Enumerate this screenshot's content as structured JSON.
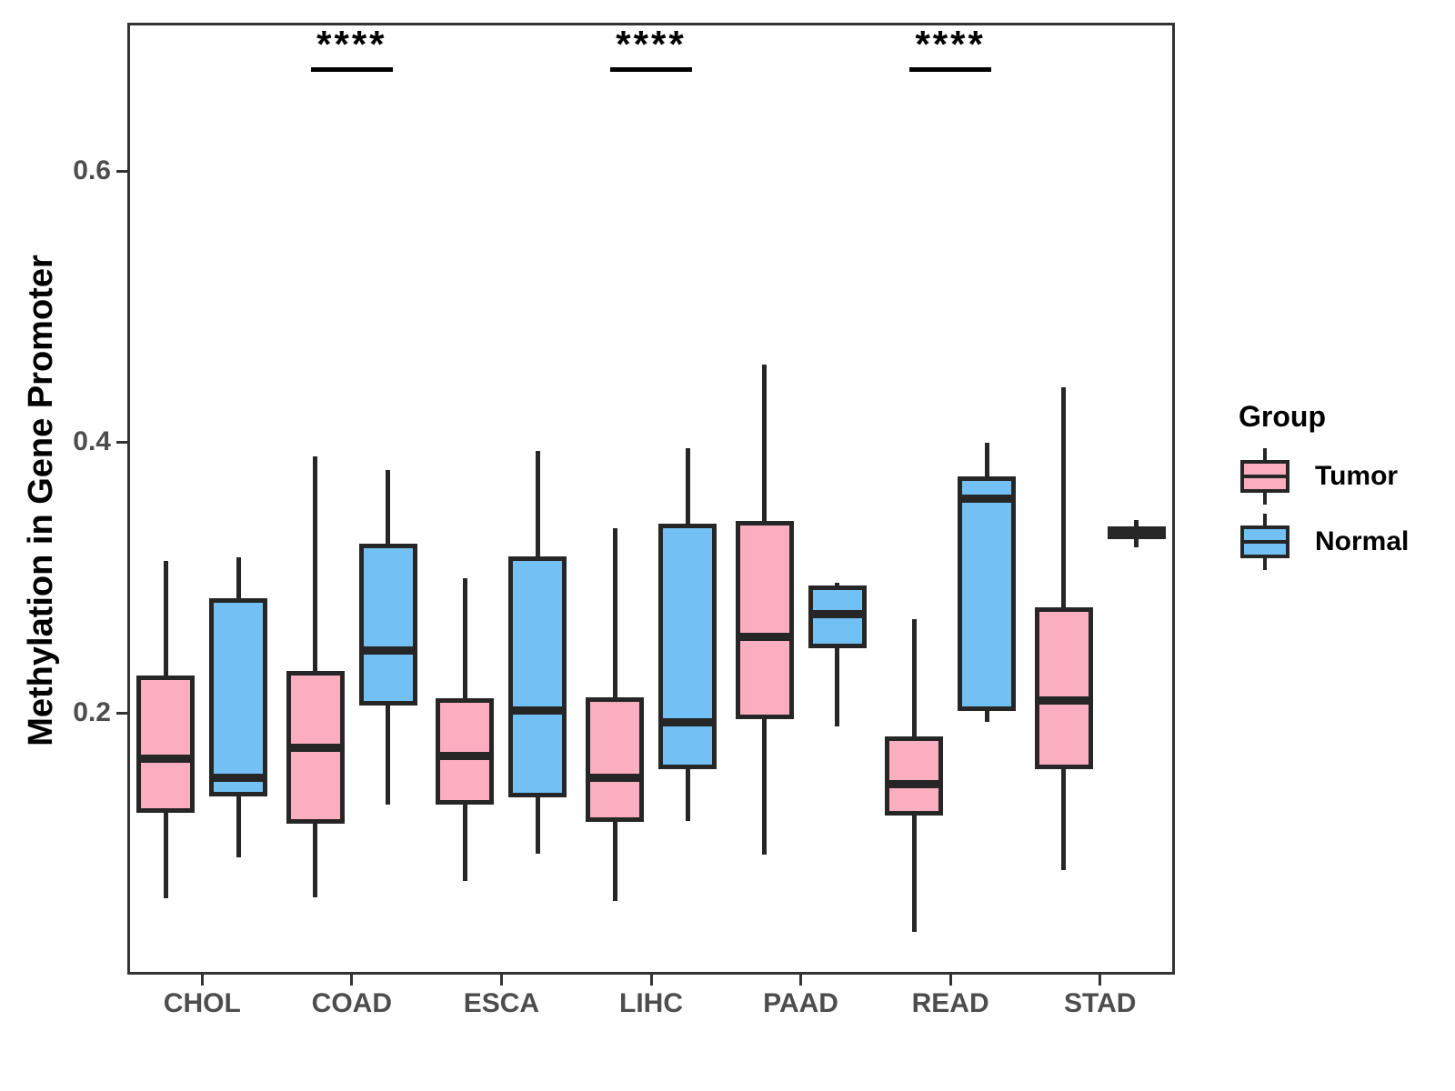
{
  "y_axis": {
    "title": "Methylation in Gene Promoter",
    "tick_labels": [
      "0.2",
      "0.4",
      "0.6"
    ]
  },
  "x_axis": {
    "categories": [
      "CHOL",
      "COAD",
      "ESCA",
      "LIHC",
      "PAAD",
      "READ",
      "STAD"
    ]
  },
  "legend": {
    "title": "Group",
    "entries": [
      {
        "label": "Tumor",
        "color": "#FBAEC0"
      },
      {
        "label": "Normal",
        "color": "#72C0F4"
      }
    ]
  },
  "colors": {
    "tumor_fill": "#FBAEC0",
    "normal_fill": "#72C0F4",
    "stroke": "#262626",
    "panel_border": "#333333",
    "axis_text": "#4d4d4d"
  },
  "chart_data": {
    "type": "boxplot",
    "ylabel": "Methylation in Gene Promoter",
    "ylim": [
      0.005,
      0.71
    ],
    "yticks": [
      0.2,
      0.4,
      0.6
    ],
    "grid": false,
    "legend_position": "right",
    "categories": [
      "CHOL",
      "COAD",
      "ESCA",
      "LIHC",
      "PAAD",
      "READ",
      "STAD"
    ],
    "series": [
      {
        "name": "Tumor",
        "color": "#FBAEC0",
        "boxes": [
          {
            "lo": 0.063,
            "q1": 0.128,
            "med": 0.166,
            "q3": 0.226,
            "hi": 0.312
          },
          {
            "lo": 0.064,
            "q1": 0.12,
            "med": 0.174,
            "q3": 0.229,
            "hi": 0.389
          },
          {
            "lo": 0.076,
            "q1": 0.134,
            "med": 0.168,
            "q3": 0.209,
            "hi": 0.299
          },
          {
            "lo": 0.061,
            "q1": 0.121,
            "med": 0.152,
            "q3": 0.21,
            "hi": 0.336
          },
          {
            "lo": 0.095,
            "q1": 0.197,
            "med": 0.256,
            "q3": 0.34,
            "hi": 0.457
          },
          {
            "lo": 0.038,
            "q1": 0.126,
            "med": 0.147,
            "q3": 0.181,
            "hi": 0.269
          },
          {
            "lo": 0.084,
            "q1": 0.16,
            "med": 0.209,
            "q3": 0.276,
            "hi": 0.44
          }
        ]
      },
      {
        "name": "Normal",
        "color": "#72C0F4",
        "boxes": [
          {
            "lo": 0.093,
            "q1": 0.14,
            "med": 0.152,
            "q3": 0.283,
            "hi": 0.315
          },
          {
            "lo": 0.132,
            "q1": 0.207,
            "med": 0.246,
            "q3": 0.323,
            "hi": 0.379
          },
          {
            "lo": 0.096,
            "q1": 0.139,
            "med": 0.202,
            "q3": 0.314,
            "hi": 0.393
          },
          {
            "lo": 0.12,
            "q1": 0.16,
            "med": 0.193,
            "q3": 0.338,
            "hi": 0.395
          },
          {
            "lo": 0.19,
            "q1": 0.249,
            "med": 0.273,
            "q3": 0.292,
            "hi": 0.296
          },
          {
            "lo": 0.193,
            "q1": 0.203,
            "med": 0.358,
            "q3": 0.373,
            "hi": 0.399
          },
          {
            "lo": 0.322,
            "q1": 0.33,
            "med": 0.333,
            "q3": 0.336,
            "hi": 0.342
          }
        ]
      }
    ],
    "significance": [
      {
        "category": "COAD",
        "label": "****"
      },
      {
        "category": "LIHC",
        "label": "****"
      },
      {
        "category": "READ",
        "label": "****"
      }
    ]
  }
}
